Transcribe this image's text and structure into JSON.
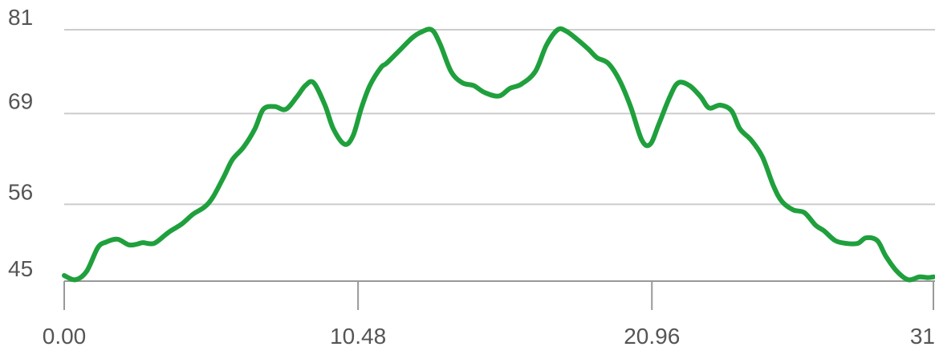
{
  "chart_data": {
    "type": "line",
    "title": "",
    "xlabel": "",
    "ylabel": "",
    "xlim": [
      0,
      31
    ],
    "ylim": [
      45,
      81
    ],
    "grid": true,
    "legend": "none",
    "y_ticks": [
      {
        "value": 45,
        "label": "45"
      },
      {
        "value": 56,
        "label": "56"
      },
      {
        "value": 69,
        "label": "69"
      },
      {
        "value": 81,
        "label": "81"
      }
    ],
    "x_ticks": [
      {
        "value": 0,
        "label": "0.00"
      },
      {
        "value": 10.48,
        "label": "10.48"
      },
      {
        "value": 20.96,
        "label": "20.96"
      },
      {
        "value": 31,
        "label": "31"
      }
    ],
    "series": [
      {
        "color": "#1fa03c",
        "x": [
          0,
          0.4,
          0.8,
          1.2,
          1.5,
          1.9,
          2.3,
          2.6,
          2.8,
          3.2,
          3.6,
          3.8,
          4.2,
          4.6,
          5.0,
          5.3,
          5.7,
          6.0,
          6.4,
          6.8,
          7.1,
          7.5,
          7.9,
          8.3,
          8.6,
          8.9,
          9.3,
          9.6,
          10.0,
          10.3,
          10.6,
          10.9,
          11.3,
          11.5,
          12.0,
          12.4,
          12.7,
          13.1,
          13.4,
          13.8,
          14.2,
          14.6,
          15.0,
          15.5,
          15.9,
          16.3,
          16.8,
          17.2,
          17.6,
          17.9,
          18.3,
          18.7,
          19.0,
          19.4,
          19.8,
          20.2,
          20.6,
          20.9,
          21.2,
          21.6,
          21.9,
          22.3,
          22.7,
          23.0,
          23.4,
          23.8,
          24.1,
          24.5,
          24.9,
          25.3,
          25.6,
          26.0,
          26.4,
          26.8,
          27.1,
          27.5,
          27.9,
          28.3,
          28.6,
          29.0,
          29.3,
          29.7,
          30.1,
          30.5,
          30.8,
          31.0
        ],
        "y": [
          45.8,
          45.2,
          46.4,
          49.8,
          50.6,
          51.0,
          50.2,
          50.3,
          50.5,
          50.4,
          51.6,
          52.2,
          53.2,
          54.6,
          55.6,
          57.0,
          60.0,
          62.4,
          64.2,
          66.8,
          69.6,
          70.0,
          69.6,
          71.4,
          73.0,
          73.4,
          70.2,
          66.8,
          64.6,
          65.8,
          69.8,
          73.0,
          75.6,
          76.2,
          78.2,
          79.8,
          80.6,
          81.0,
          79.0,
          75.0,
          73.4,
          73.0,
          72.0,
          71.5,
          72.6,
          73.2,
          75.0,
          78.8,
          81.0,
          80.8,
          79.6,
          78.2,
          77.0,
          76.2,
          73.8,
          70.0,
          65.2,
          64.6,
          67.4,
          71.4,
          73.4,
          73.0,
          71.4,
          69.8,
          70.2,
          69.4,
          66.8,
          65.2,
          62.8,
          58.6,
          56.4,
          55.2,
          54.8,
          53.0,
          52.2,
          50.8,
          50.4,
          50.4,
          51.2,
          50.8,
          48.6,
          46.4,
          45.2,
          45.6,
          45.5,
          45.6
        ]
      }
    ]
  }
}
